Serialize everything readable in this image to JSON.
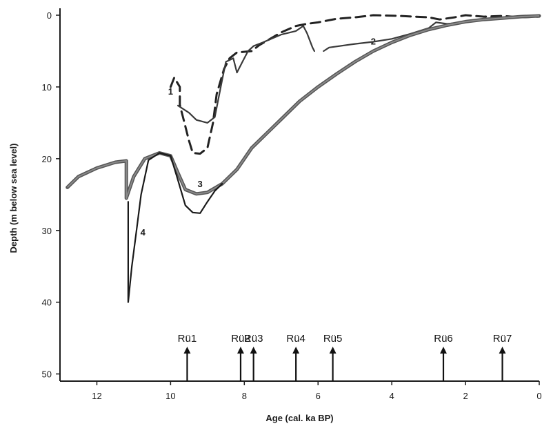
{
  "chart_data": {
    "type": "line",
    "title": "",
    "xlabel": "Age (cal. ka BP)",
    "ylabel": "Depth (m below sea level)",
    "xlim": [
      13,
      0
    ],
    "ylim": [
      0,
      51
    ],
    "x_reversed": true,
    "y_reversed": true,
    "grid": false,
    "legend": "none",
    "x_ticks": [
      12,
      10,
      8,
      6,
      4,
      2,
      0
    ],
    "y_ticks": [
      0,
      10,
      20,
      30,
      40,
      50
    ],
    "series": [
      {
        "name": "1",
        "style": "dashed",
        "color": "#222222",
        "label_at": [
          10.0,
          10.6
        ],
        "points": [
          [
            10.0,
            10.0
          ],
          [
            9.9,
            8.7
          ],
          [
            9.75,
            10.0
          ],
          [
            9.75,
            12.5
          ],
          [
            9.6,
            15.5
          ],
          [
            9.5,
            17.5
          ],
          [
            9.4,
            19.2
          ],
          [
            9.2,
            19.3
          ],
          [
            9.0,
            18.5
          ],
          [
            8.85,
            15.0
          ],
          [
            8.75,
            11.0
          ],
          [
            8.55,
            7.5
          ],
          [
            8.4,
            6.0
          ],
          [
            8.2,
            5.2
          ],
          [
            7.8,
            5.0
          ],
          [
            7.6,
            4.2
          ],
          [
            7.3,
            3.3
          ],
          [
            7.0,
            2.4
          ],
          [
            6.6,
            1.5
          ],
          [
            6.3,
            1.2
          ],
          [
            6.0,
            1.0
          ],
          [
            5.5,
            0.5
          ],
          [
            5.0,
            0.3
          ],
          [
            4.5,
            0.0
          ],
          [
            3.8,
            0.1
          ],
          [
            3.0,
            0.3
          ],
          [
            2.7,
            0.6
          ],
          [
            2.3,
            0.3
          ],
          [
            2.0,
            0.0
          ],
          [
            1.5,
            0.2
          ],
          [
            1.0,
            0.1
          ],
          [
            0.5,
            0.3
          ],
          [
            0.0,
            0.2
          ]
        ]
      },
      {
        "name": "2",
        "style": "solid",
        "color": "#3a3a3a",
        "label_at": [
          4.5,
          3.6
        ],
        "points": [
          [
            9.8,
            12.6
          ],
          [
            9.5,
            13.6
          ],
          [
            9.3,
            14.6
          ],
          [
            9.0,
            15.0
          ],
          [
            8.8,
            14.2
          ],
          [
            8.6,
            9.0
          ],
          [
            8.5,
            6.5
          ],
          [
            8.3,
            6.0
          ],
          [
            8.2,
            8.0
          ],
          [
            8.05,
            6.5
          ],
          [
            7.9,
            5.0
          ],
          [
            7.75,
            4.3
          ],
          [
            7.5,
            3.8
          ],
          [
            7.0,
            2.7
          ],
          [
            6.6,
            2.2
          ],
          [
            6.4,
            1.5
          ],
          [
            6.3,
            2.5
          ],
          [
            6.15,
            4.5
          ],
          [
            6.1,
            5.0
          ]
        ]
      },
      {
        "name": "2",
        "style": "solid",
        "color": "#3a3a3a",
        "points": [
          [
            5.85,
            5.0
          ],
          [
            5.7,
            4.5
          ],
          [
            5.0,
            4.0
          ],
          [
            4.5,
            3.7
          ],
          [
            4.0,
            3.3
          ],
          [
            3.5,
            2.6
          ],
          [
            3.0,
            1.8
          ],
          [
            2.8,
            1.0
          ],
          [
            2.5,
            1.2
          ],
          [
            2.0,
            1.0
          ],
          [
            1.5,
            0.6
          ],
          [
            1.0,
            0.4
          ],
          [
            0.5,
            0.3
          ],
          [
            0.0,
            0.1
          ]
        ]
      },
      {
        "name": "3",
        "style": "solid",
        "color": "#555555",
        "thick": true,
        "label_at": [
          9.2,
          23.5
        ],
        "points": [
          [
            12.8,
            24.0
          ],
          [
            12.5,
            22.5
          ],
          [
            12.0,
            21.3
          ],
          [
            11.5,
            20.5
          ],
          [
            11.2,
            20.3
          ],
          [
            11.2,
            25.5
          ],
          [
            11.0,
            22.5
          ],
          [
            10.7,
            20.0
          ],
          [
            10.3,
            19.2
          ],
          [
            10.0,
            19.6
          ],
          [
            9.8,
            22.0
          ],
          [
            9.6,
            24.3
          ],
          [
            9.3,
            24.9
          ],
          [
            9.0,
            24.7
          ],
          [
            8.6,
            23.5
          ],
          [
            8.2,
            21.5
          ],
          [
            7.8,
            18.5
          ],
          [
            7.4,
            16.5
          ],
          [
            7.0,
            14.5
          ],
          [
            6.5,
            12.0
          ],
          [
            6.0,
            10.0
          ],
          [
            5.5,
            8.2
          ],
          [
            5.0,
            6.5
          ],
          [
            4.5,
            5.0
          ],
          [
            4.0,
            3.8
          ],
          [
            3.5,
            2.8
          ],
          [
            3.0,
            2.0
          ],
          [
            2.5,
            1.4
          ],
          [
            2.0,
            0.9
          ],
          [
            1.5,
            0.6
          ],
          [
            1.0,
            0.4
          ],
          [
            0.5,
            0.2
          ],
          [
            0.0,
            0.1
          ]
        ]
      },
      {
        "name": "4",
        "style": "solid",
        "color": "#1a1a1a",
        "label_at": [
          10.75,
          30.2
        ],
        "points": [
          [
            11.15,
            26.0
          ],
          [
            11.15,
            40.0
          ],
          [
            11.05,
            35.0
          ],
          [
            10.9,
            29.0
          ],
          [
            10.8,
            25.0
          ],
          [
            10.6,
            20.2
          ],
          [
            10.3,
            19.2
          ],
          [
            10.0,
            19.6
          ],
          [
            9.8,
            23.0
          ],
          [
            9.6,
            26.5
          ],
          [
            9.4,
            27.5
          ],
          [
            9.2,
            27.6
          ],
          [
            9.0,
            26.0
          ],
          [
            8.8,
            24.5
          ],
          [
            8.6,
            23.5
          ]
        ]
      }
    ],
    "markers": [
      {
        "label": "Rü1",
        "x": 9.55,
        "arrow_from": 51,
        "arrow_to": 46.2
      },
      {
        "label": "Rü2",
        "x": 8.1,
        "arrow_from": 51,
        "arrow_to": 46.2
      },
      {
        "label": "Rü3",
        "x": 7.75,
        "arrow_from": 51,
        "arrow_to": 46.2
      },
      {
        "label": "Rü4",
        "x": 6.6,
        "arrow_from": 51,
        "arrow_to": 46.2
      },
      {
        "label": "Rü5",
        "x": 5.6,
        "arrow_from": 51,
        "arrow_to": 46.2
      },
      {
        "label": "Rü6",
        "x": 2.6,
        "arrow_from": 51,
        "arrow_to": 46.2
      },
      {
        "label": "Rü7",
        "x": 1.0,
        "arrow_from": 51,
        "arrow_to": 46.2
      }
    ],
    "label_color": "#1a1a1a",
    "axis_color": "#1a1a1a"
  }
}
